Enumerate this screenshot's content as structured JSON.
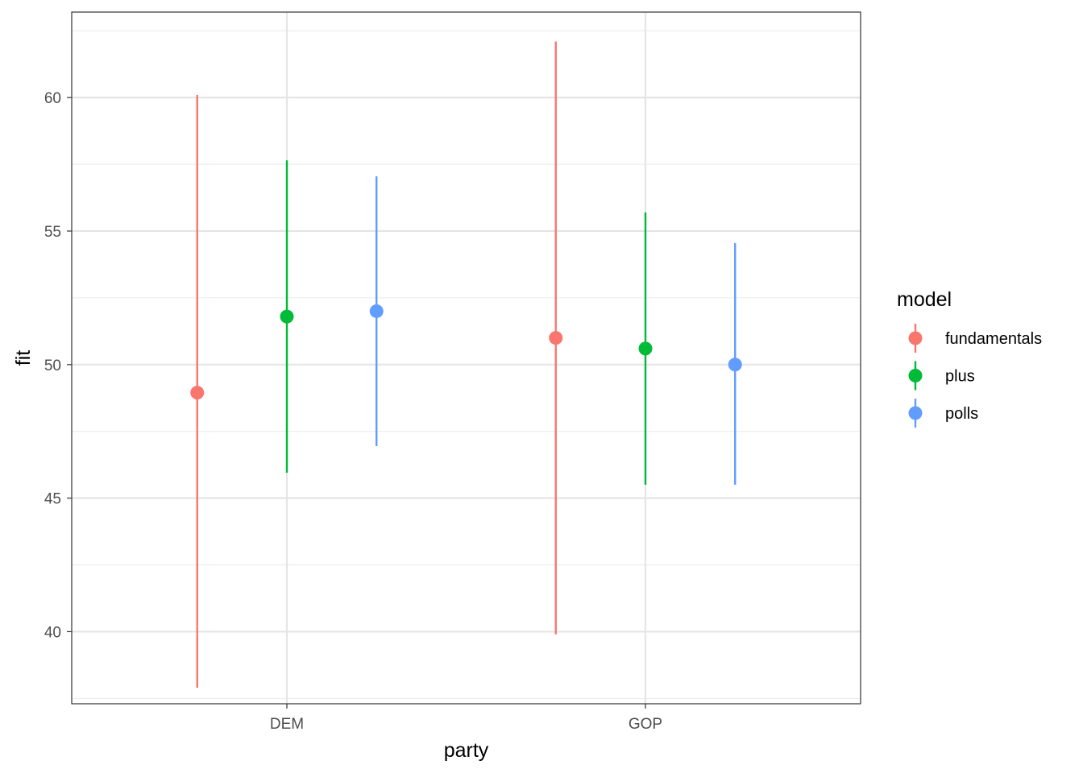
{
  "chart_data": {
    "type": "pointrange",
    "xlabel": "party",
    "ylabel": "fit",
    "categories": [
      "DEM",
      "GOP"
    ],
    "ylim": [
      37.3,
      63.2
    ],
    "yticks": [
      40,
      45,
      50,
      55,
      60
    ],
    "ytick_labels": [
      "40",
      "45",
      "50",
      "55",
      "60"
    ],
    "grid": true,
    "legend": {
      "title": "model",
      "position": "right"
    },
    "series": [
      {
        "name": "fundamentals",
        "color": "#F8766D",
        "points": [
          {
            "x": "DEM",
            "fit": 48.95,
            "lower": 37.9,
            "upper": 60.1
          },
          {
            "x": "GOP",
            "fit": 51.0,
            "lower": 39.9,
            "upper": 62.1
          }
        ]
      },
      {
        "name": "plus",
        "color": "#00BA38",
        "points": [
          {
            "x": "DEM",
            "fit": 51.8,
            "lower": 45.95,
            "upper": 57.65
          },
          {
            "x": "GOP",
            "fit": 50.6,
            "lower": 45.5,
            "upper": 55.7
          }
        ]
      },
      {
        "name": "polls",
        "color": "#619CFF",
        "points": [
          {
            "x": "DEM",
            "fit": 52.0,
            "lower": 46.95,
            "upper": 57.05
          },
          {
            "x": "GOP",
            "fit": 50.0,
            "lower": 45.5,
            "upper": 54.55
          }
        ]
      }
    ]
  }
}
